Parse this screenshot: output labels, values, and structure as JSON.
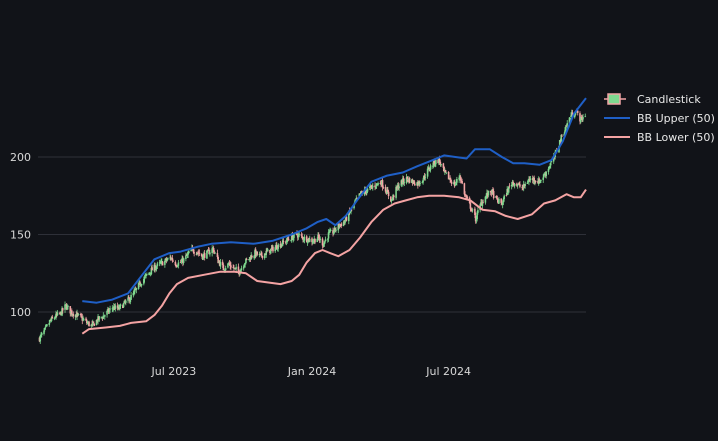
{
  "chart_data": {
    "type": "candlestick",
    "title": "",
    "xlabel": "",
    "ylabel": "",
    "x_range": [
      "2023-01-01",
      "2024-12-31"
    ],
    "ylim": [
      75,
      250
    ],
    "y_ticks": [
      100,
      150,
      200
    ],
    "x_ticks": [
      {
        "date": "2023-07-01",
        "label": "Jul 2023"
      },
      {
        "date": "2024-01-01",
        "label": "Jan 2024"
      },
      {
        "date": "2024-07-01",
        "label": "Jul 2024"
      }
    ],
    "grid": {
      "horizontal": true,
      "vertical": false
    },
    "legend_position": "top-right",
    "colors": {
      "background": "#111318",
      "grid": "#2e3038",
      "increasing": "#7fd98f",
      "decreasing": "#f2a5a5",
      "bb_upper": "#1f5fc6",
      "bb_lower": "#f4a3a3"
    },
    "series": [
      {
        "name": "Candlestick",
        "kind": "ohlc"
      },
      {
        "name": "BB Upper (50)",
        "kind": "line"
      },
      {
        "name": "BB Lower (50)",
        "kind": "line"
      }
    ],
    "price_path": [
      [
        "2023-01-03",
        83
      ],
      [
        "2023-01-10",
        88
      ],
      [
        "2023-01-17",
        94
      ],
      [
        "2023-01-24",
        97
      ],
      [
        "2023-01-31",
        99
      ],
      [
        "2023-02-07",
        104
      ],
      [
        "2023-02-14",
        100
      ],
      [
        "2023-02-21",
        98
      ],
      [
        "2023-02-28",
        96
      ],
      [
        "2023-03-07",
        93
      ],
      [
        "2023-03-14",
        91
      ],
      [
        "2023-03-21",
        95
      ],
      [
        "2023-03-28",
        97
      ],
      [
        "2023-04-04",
        100
      ],
      [
        "2023-04-11",
        103
      ],
      [
        "2023-04-18",
        102
      ],
      [
        "2023-04-25",
        105
      ],
      [
        "2023-05-02",
        108
      ],
      [
        "2023-05-09",
        112
      ],
      [
        "2023-05-16",
        118
      ],
      [
        "2023-05-23",
        122
      ],
      [
        "2023-05-30",
        126
      ],
      [
        "2023-06-06",
        129
      ],
      [
        "2023-06-13",
        131
      ],
      [
        "2023-06-20",
        133
      ],
      [
        "2023-06-27",
        135
      ],
      [
        "2023-07-04",
        131
      ],
      [
        "2023-07-11",
        132
      ],
      [
        "2023-07-18",
        136
      ],
      [
        "2023-07-25",
        140
      ],
      [
        "2023-08-01",
        139
      ],
      [
        "2023-08-08",
        136
      ],
      [
        "2023-08-15",
        138
      ],
      [
        "2023-08-22",
        141
      ],
      [
        "2023-08-29",
        133
      ],
      [
        "2023-09-05",
        128
      ],
      [
        "2023-09-12",
        131
      ],
      [
        "2023-09-19",
        128
      ],
      [
        "2023-09-26",
        126
      ],
      [
        "2023-10-03",
        132
      ],
      [
        "2023-10-10",
        135
      ],
      [
        "2023-10-17",
        138
      ],
      [
        "2023-10-24",
        136
      ],
      [
        "2023-10-31",
        138
      ],
      [
        "2023-11-07",
        140
      ],
      [
        "2023-11-14",
        142
      ],
      [
        "2023-11-21",
        144
      ],
      [
        "2023-11-28",
        146
      ],
      [
        "2023-12-05",
        148
      ],
      [
        "2023-12-12",
        150
      ],
      [
        "2023-12-19",
        148
      ],
      [
        "2023-12-26",
        147
      ],
      [
        "2024-01-02",
        146
      ],
      [
        "2024-01-09",
        148
      ],
      [
        "2024-01-16",
        144
      ],
      [
        "2024-01-23",
        150
      ],
      [
        "2024-01-30",
        152
      ],
      [
        "2024-02-06",
        156
      ],
      [
        "2024-02-13",
        158
      ],
      [
        "2024-02-20",
        164
      ],
      [
        "2024-02-27",
        170
      ],
      [
        "2024-03-05",
        176
      ],
      [
        "2024-03-12",
        178
      ],
      [
        "2024-03-19",
        180
      ],
      [
        "2024-03-26",
        182
      ],
      [
        "2024-04-02",
        184
      ],
      [
        "2024-04-09",
        178
      ],
      [
        "2024-04-16",
        172
      ],
      [
        "2024-04-23",
        180
      ],
      [
        "2024-04-30",
        184
      ],
      [
        "2024-05-07",
        186
      ],
      [
        "2024-05-14",
        184
      ],
      [
        "2024-05-21",
        183
      ],
      [
        "2024-05-28",
        186
      ],
      [
        "2024-06-04",
        192
      ],
      [
        "2024-06-11",
        196
      ],
      [
        "2024-06-18",
        198
      ],
      [
        "2024-06-25",
        190
      ],
      [
        "2024-07-02",
        186
      ],
      [
        "2024-07-09",
        182
      ],
      [
        "2024-07-16",
        188
      ],
      [
        "2024-07-23",
        175
      ],
      [
        "2024-07-30",
        168
      ],
      [
        "2024-08-06",
        160
      ],
      [
        "2024-08-13",
        170
      ],
      [
        "2024-08-20",
        175
      ],
      [
        "2024-08-27",
        178
      ],
      [
        "2024-09-03",
        172
      ],
      [
        "2024-09-10",
        170
      ],
      [
        "2024-09-17",
        178
      ],
      [
        "2024-09-24",
        184
      ],
      [
        "2024-10-01",
        182
      ],
      [
        "2024-10-08",
        180
      ],
      [
        "2024-10-15",
        185
      ],
      [
        "2024-10-22",
        186
      ],
      [
        "2024-10-29",
        184
      ],
      [
        "2024-11-05",
        188
      ],
      [
        "2024-11-12",
        194
      ],
      [
        "2024-11-19",
        200
      ],
      [
        "2024-11-26",
        210
      ],
      [
        "2024-12-03",
        218
      ],
      [
        "2024-12-10",
        226
      ],
      [
        "2024-12-17",
        230
      ],
      [
        "2024-12-24",
        224
      ],
      [
        "2024-12-31",
        228
      ]
    ],
    "bb_upper": [
      [
        "2023-03-01",
        107
      ],
      [
        "2023-03-20",
        106
      ],
      [
        "2023-04-10",
        108
      ],
      [
        "2023-05-01",
        112
      ],
      [
        "2023-05-20",
        124
      ],
      [
        "2023-06-05",
        134
      ],
      [
        "2023-06-25",
        138
      ],
      [
        "2023-07-10",
        139
      ],
      [
        "2023-08-01",
        142
      ],
      [
        "2023-08-20",
        144
      ],
      [
        "2023-09-15",
        145
      ],
      [
        "2023-10-15",
        144
      ],
      [
        "2023-11-10",
        146
      ],
      [
        "2023-12-05",
        150
      ],
      [
        "2023-12-25",
        154
      ],
      [
        "2024-01-08",
        158
      ],
      [
        "2024-01-20",
        160
      ],
      [
        "2024-02-01",
        156
      ],
      [
        "2024-02-15",
        162
      ],
      [
        "2024-03-01",
        172
      ],
      [
        "2024-03-20",
        184
      ],
      [
        "2024-04-10",
        188
      ],
      [
        "2024-05-01",
        190
      ],
      [
        "2024-05-20",
        194
      ],
      [
        "2024-06-10",
        198
      ],
      [
        "2024-06-25",
        201
      ],
      [
        "2024-07-10",
        200
      ],
      [
        "2024-07-25",
        199
      ],
      [
        "2024-08-05",
        205
      ],
      [
        "2024-08-25",
        205
      ],
      [
        "2024-09-10",
        200
      ],
      [
        "2024-09-25",
        196
      ],
      [
        "2024-10-10",
        196
      ],
      [
        "2024-10-30",
        195
      ],
      [
        "2024-11-15",
        198
      ],
      [
        "2024-11-30",
        210
      ],
      [
        "2024-12-15",
        228
      ],
      [
        "2024-12-31",
        238
      ]
    ],
    "bb_lower": [
      [
        "2023-03-01",
        86
      ],
      [
        "2023-03-10",
        89
      ],
      [
        "2023-04-01",
        90
      ],
      [
        "2023-04-20",
        91
      ],
      [
        "2023-05-05",
        93
      ],
      [
        "2023-05-25",
        94
      ],
      [
        "2023-06-05",
        98
      ],
      [
        "2023-06-15",
        104
      ],
      [
        "2023-06-25",
        112
      ],
      [
        "2023-07-05",
        118
      ],
      [
        "2023-07-20",
        122
      ],
      [
        "2023-08-10",
        124
      ],
      [
        "2023-09-01",
        126
      ],
      [
        "2023-09-20",
        126
      ],
      [
        "2023-10-05",
        125
      ],
      [
        "2023-10-20",
        120
      ],
      [
        "2023-11-05",
        119
      ],
      [
        "2023-11-20",
        118
      ],
      [
        "2023-12-05",
        120
      ],
      [
        "2023-12-15",
        124
      ],
      [
        "2023-12-25",
        132
      ],
      [
        "2024-01-05",
        138
      ],
      [
        "2024-01-15",
        140
      ],
      [
        "2024-01-25",
        138
      ],
      [
        "2024-02-05",
        136
      ],
      [
        "2024-02-20",
        140
      ],
      [
        "2024-03-05",
        148
      ],
      [
        "2024-03-20",
        158
      ],
      [
        "2024-04-05",
        166
      ],
      [
        "2024-04-20",
        170
      ],
      [
        "2024-05-05",
        172
      ],
      [
        "2024-05-20",
        174
      ],
      [
        "2024-06-05",
        175
      ],
      [
        "2024-06-25",
        175
      ],
      [
        "2024-07-15",
        174
      ],
      [
        "2024-07-30",
        172
      ],
      [
        "2024-08-15",
        166
      ],
      [
        "2024-09-01",
        165
      ],
      [
        "2024-09-15",
        162
      ],
      [
        "2024-10-01",
        160
      ],
      [
        "2024-10-20",
        163
      ],
      [
        "2024-11-05",
        170
      ],
      [
        "2024-11-20",
        172
      ],
      [
        "2024-12-05",
        176
      ],
      [
        "2024-12-15",
        174
      ],
      [
        "2024-12-24",
        174
      ],
      [
        "2024-12-31",
        179
      ]
    ]
  }
}
